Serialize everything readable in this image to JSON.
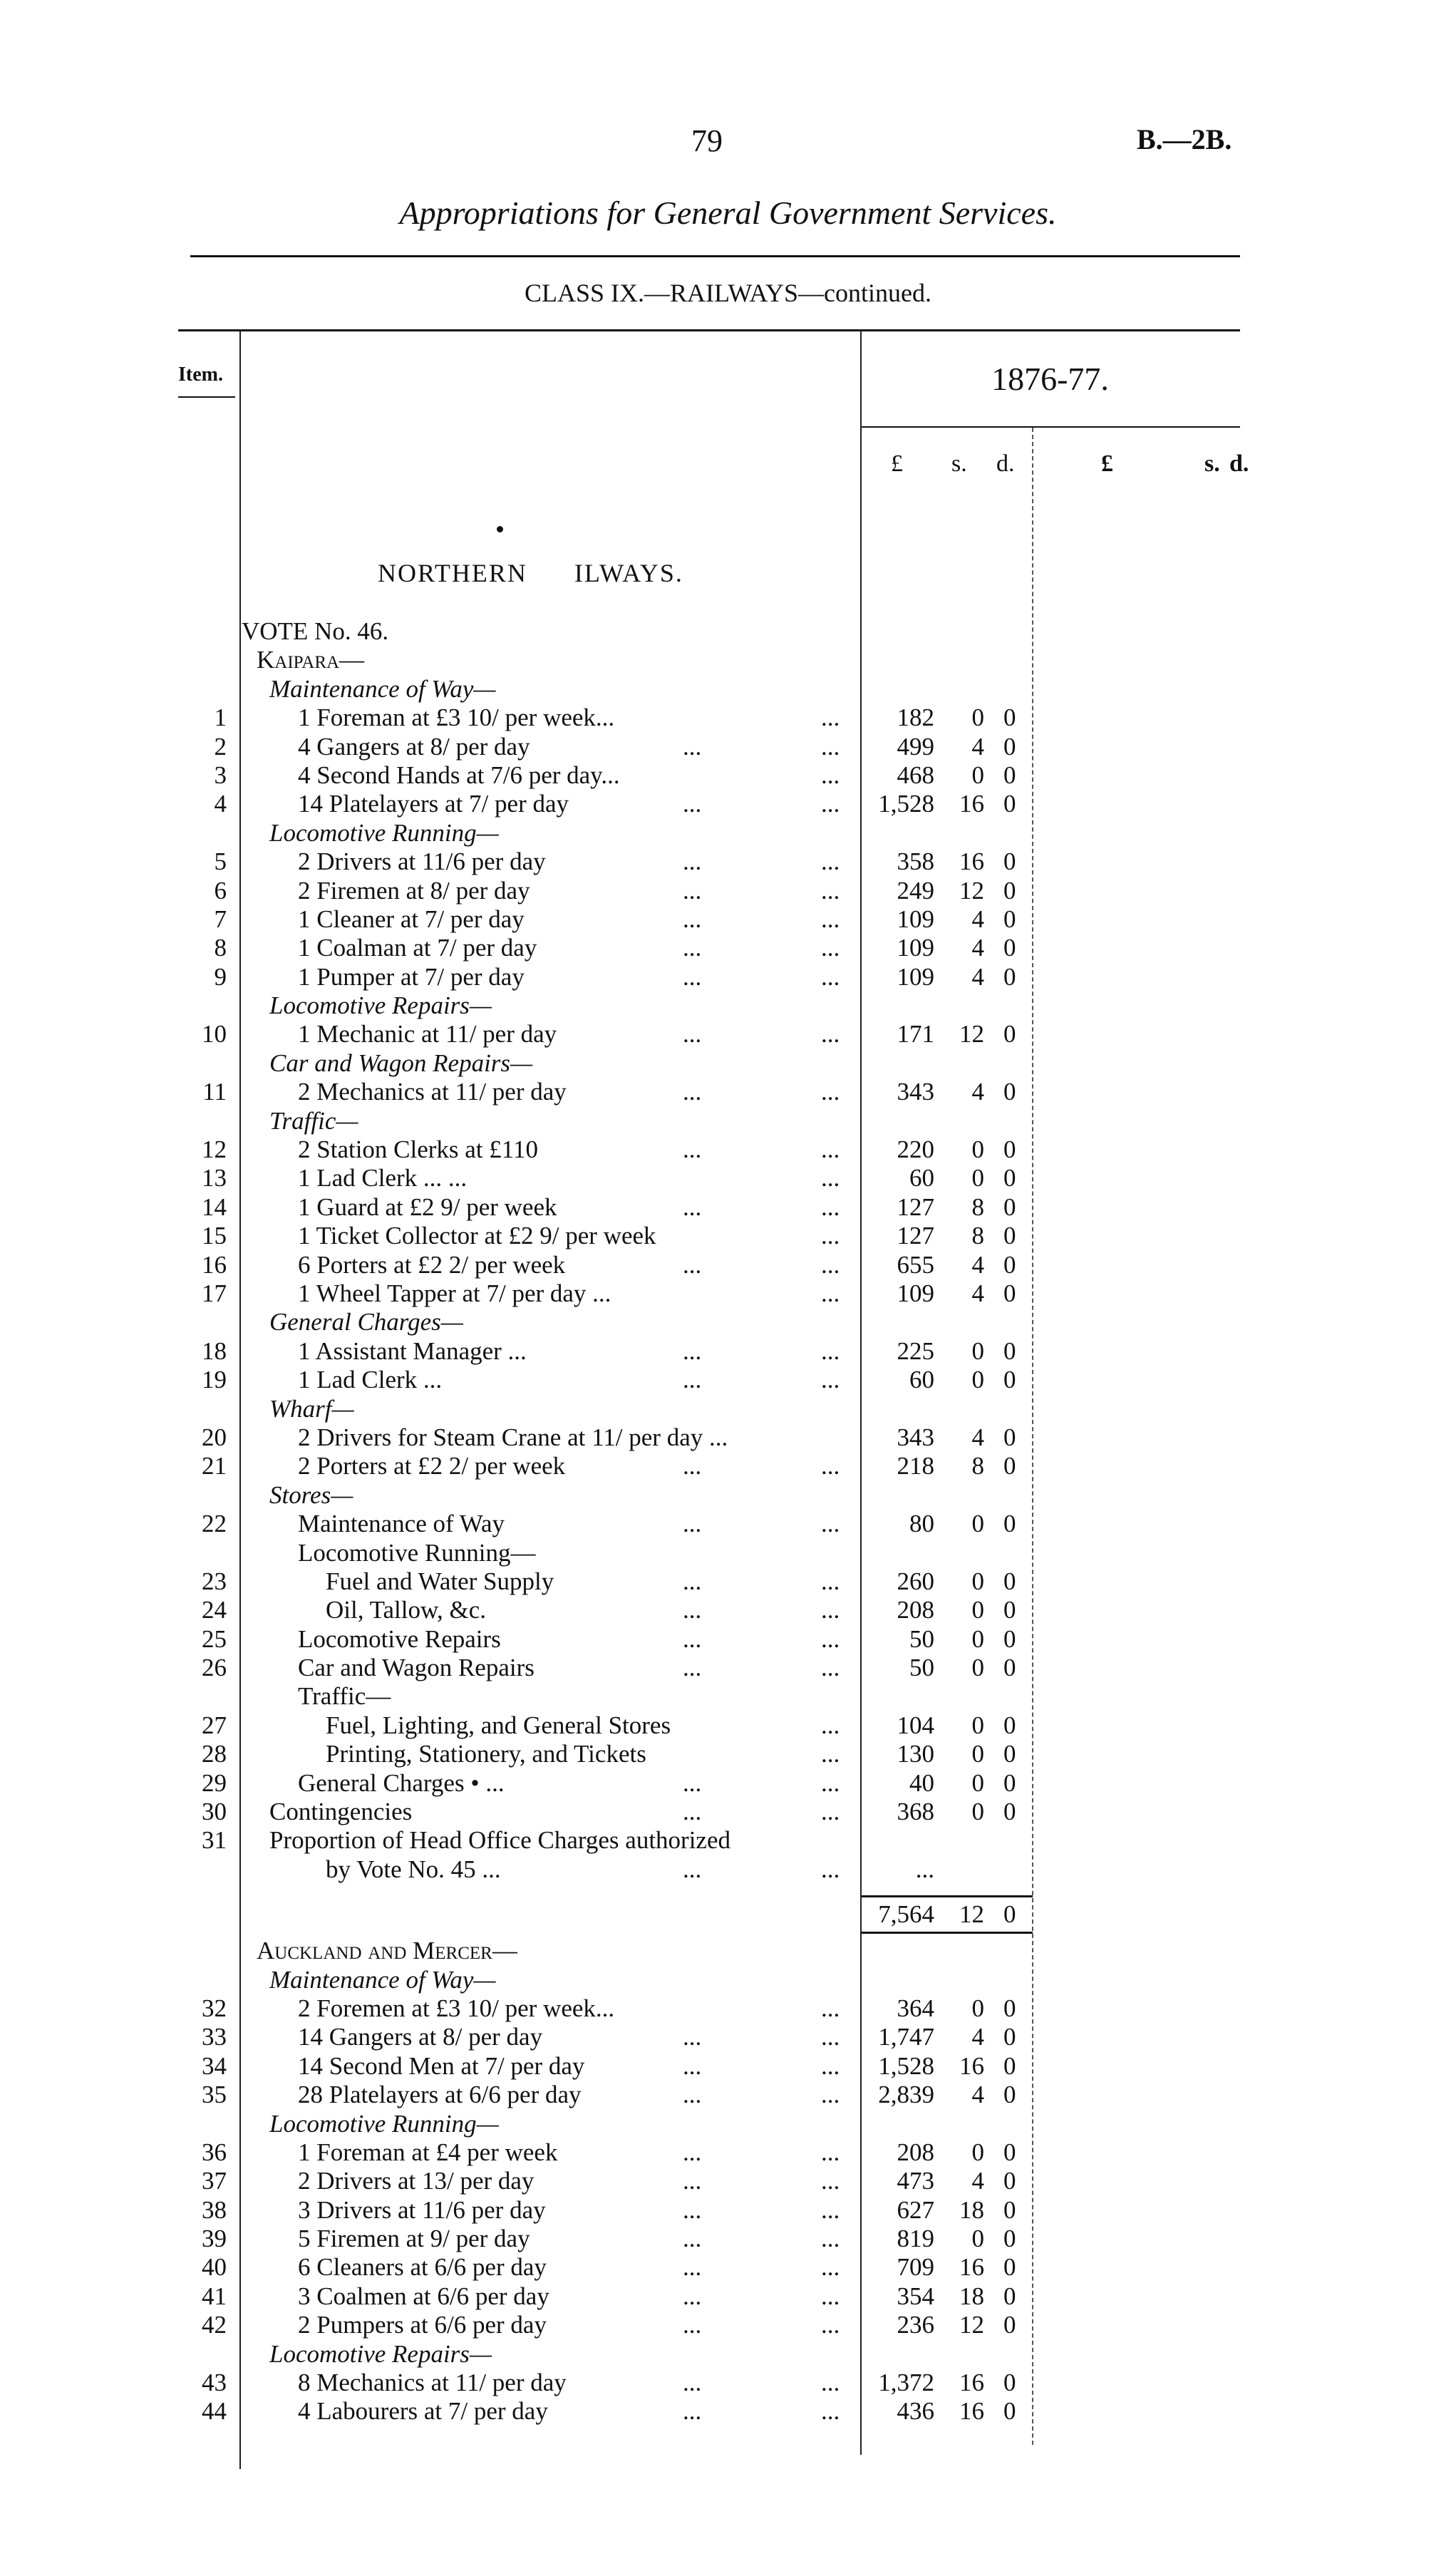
{
  "header": {
    "page_number": "79",
    "reference": "B.—2B.",
    "title": "Appropriations for General Government Services.",
    "class_heading": "CLASS IX.—RAILWAYS—continued."
  },
  "columns": {
    "item": "Item.",
    "year": "1876-77.",
    "pound": "£",
    "shilling": "s.",
    "pence": "d.",
    "pound2": "£",
    "shilling2": "s.",
    "pence2": "d."
  },
  "section_heading": "NORTHERN      ILWAYS.",
  "rows": [
    {
      "text": "VOTE No. 46.",
      "lvl": 0
    },
    {
      "text": "Kaipara—",
      "lvl": 1,
      "style": "sc"
    },
    {
      "text": "Maintenance of Way—",
      "lvl": 2,
      "style": "italic"
    },
    {
      "item": "1",
      "text": "1 Foreman at £3 10/ per week...",
      "lvl": 3,
      "dots": 1,
      "l": "182",
      "s": "0",
      "d": "0"
    },
    {
      "item": "2",
      "text": "4 Gangers at 8/ per day",
      "lvl": 3,
      "dots": 2,
      "l": "499",
      "s": "4",
      "d": "0"
    },
    {
      "item": "3",
      "text": "4 Second Hands at 7/6 per day...",
      "lvl": 3,
      "dots": 1,
      "l": "468",
      "s": "0",
      "d": "0"
    },
    {
      "item": "4",
      "text": "14 Platelayers at 7/ per day",
      "lvl": 3,
      "dots": 2,
      "l": "1,528",
      "s": "16",
      "d": "0"
    },
    {
      "text": "Locomotive Running—",
      "lvl": 2,
      "style": "italic"
    },
    {
      "item": "5",
      "text": "2 Drivers at 11/6 per day",
      "lvl": 3,
      "dots": 2,
      "l": "358",
      "s": "16",
      "d": "0"
    },
    {
      "item": "6",
      "text": "2 Firemen at 8/ per day",
      "lvl": 3,
      "dots": 2,
      "l": "249",
      "s": "12",
      "d": "0"
    },
    {
      "item": "7",
      "text": "1 Cleaner at 7/ per day",
      "lvl": 3,
      "dots": 2,
      "l": "109",
      "s": "4",
      "d": "0"
    },
    {
      "item": "8",
      "text": "1 Coalman at 7/ per day",
      "lvl": 3,
      "dots": 2,
      "l": "109",
      "s": "4",
      "d": "0"
    },
    {
      "item": "9",
      "text": "1 Pumper at 7/ per day",
      "lvl": 3,
      "dots": 2,
      "l": "109",
      "s": "4",
      "d": "0"
    },
    {
      "text": "Locomotive Repairs—",
      "lvl": 2,
      "style": "italic"
    },
    {
      "item": "10",
      "text": "1 Mechanic at 11/ per day",
      "lvl": 3,
      "dots": 2,
      "l": "171",
      "s": "12",
      "d": "0"
    },
    {
      "text": "Car and Wagon Repairs—",
      "lvl": 2,
      "style": "italic"
    },
    {
      "item": "11",
      "text": "2 Mechanics at 11/ per day",
      "lvl": 3,
      "dots": 2,
      "l": "343",
      "s": "4",
      "d": "0"
    },
    {
      "text": "Traffic—",
      "lvl": 2,
      "style": "italic"
    },
    {
      "item": "12",
      "text": "2 Station Clerks at £110",
      "lvl": 3,
      "dots": 2,
      "l": "220",
      "s": "0",
      "d": "0"
    },
    {
      "item": "13",
      "text": "1 Lad Clerk       ...       ...",
      "lvl": 3,
      "dots": 1,
      "l": "60",
      "s": "0",
      "d": "0"
    },
    {
      "item": "14",
      "text": "1 Guard at £2 9/ per week",
      "lvl": 3,
      "dots": 2,
      "l": "127",
      "s": "8",
      "d": "0"
    },
    {
      "item": "15",
      "text": "1 Ticket Collector at £2 9/ per week",
      "lvl": 3,
      "dots": 1,
      "l": "127",
      "s": "8",
      "d": "0"
    },
    {
      "item": "16",
      "text": "6 Porters at £2 2/ per week",
      "lvl": 3,
      "dots": 2,
      "l": "655",
      "s": "4",
      "d": "0"
    },
    {
      "item": "17",
      "text": "1 Wheel Tapper at 7/ per day ...",
      "lvl": 3,
      "dots": 1,
      "l": "109",
      "s": "4",
      "d": "0"
    },
    {
      "text": "General Charges—",
      "lvl": 2,
      "style": "italic"
    },
    {
      "item": "18",
      "text": "1 Assistant Manager ...",
      "lvl": 3,
      "dots": 2,
      "l": "225",
      "s": "0",
      "d": "0"
    },
    {
      "item": "19",
      "text": "1 Lad Clerk       ...",
      "lvl": 3,
      "dots": 2,
      "l": "60",
      "s": "0",
      "d": "0"
    },
    {
      "text": "Wharf—",
      "lvl": 2,
      "style": "italic"
    },
    {
      "item": "20",
      "text": "2 Drivers for Steam Crane at 11/ per day ...",
      "lvl": 3,
      "l": "343",
      "s": "4",
      "d": "0"
    },
    {
      "item": "21",
      "text": "2 Porters at £2 2/ per week",
      "lvl": 3,
      "dots": 2,
      "l": "218",
      "s": "8",
      "d": "0"
    },
    {
      "text": "Stores—",
      "lvl": 2,
      "style": "italic"
    },
    {
      "item": "22",
      "text": "Maintenance of Way",
      "lvl": 3,
      "dots": 2,
      "l": "80",
      "s": "0",
      "d": "0"
    },
    {
      "text": "Locomotive Running—",
      "lvl": 3
    },
    {
      "item": "23",
      "text": "Fuel and Water Supply",
      "lvl": 4,
      "dots": 2,
      "l": "260",
      "s": "0",
      "d": "0"
    },
    {
      "item": "24",
      "text": "Oil, Tallow, &c.",
      "lvl": 4,
      "dots": 2,
      "l": "208",
      "s": "0",
      "d": "0"
    },
    {
      "item": "25",
      "text": "Locomotive Repairs",
      "lvl": 3,
      "dots": 2,
      "l": "50",
      "s": "0",
      "d": "0"
    },
    {
      "item": "26",
      "text": "Car and Wagon Repairs",
      "lvl": 3,
      "dots": 2,
      "l": "50",
      "s": "0",
      "d": "0"
    },
    {
      "text": "Traffic—",
      "lvl": 3
    },
    {
      "item": "27",
      "text": "Fuel, Lighting, and General Stores",
      "lvl": 4,
      "dots": 1,
      "l": "104",
      "s": "0",
      "d": "0"
    },
    {
      "item": "28",
      "text": "Printing, Stationery, and Tickets",
      "lvl": 4,
      "dots": 1,
      "l": "130",
      "s": "0",
      "d": "0"
    },
    {
      "item": "29",
      "text": "General Charges • ...",
      "lvl": 3,
      "dots": 2,
      "l": "40",
      "s": "0",
      "d": "0"
    },
    {
      "item": "30",
      "text": "Contingencies",
      "lvl": 2,
      "dots": 2,
      "l": "368",
      "s": "0",
      "d": "0"
    },
    {
      "item": "31",
      "text": "Proportion of Head Office Charges authorized",
      "lvl": 2
    },
    {
      "text": "by Vote No. 45 ...",
      "lvl": 4,
      "dots": 2,
      "l": "..."
    }
  ],
  "total": {
    "l": "7,564",
    "s": "12",
    "d": "0"
  },
  "rows2": [
    {
      "text": "Auckland and Mercer—",
      "lvl": 1,
      "style": "sc"
    },
    {
      "text": "Maintenance of Way—",
      "lvl": 2,
      "style": "italic"
    },
    {
      "item": "32",
      "text": "2 Foremen at £3 10/ per week...",
      "lvl": 3,
      "dots": 1,
      "l": "364",
      "s": "0",
      "d": "0"
    },
    {
      "item": "33",
      "text": "14 Gangers at 8/ per day",
      "lvl": 3,
      "dots": 2,
      "l": "1,747",
      "s": "4",
      "d": "0"
    },
    {
      "item": "34",
      "text": "14 Second Men at 7/ per day",
      "lvl": 3,
      "dots": 2,
      "l": "1,528",
      "s": "16",
      "d": "0"
    },
    {
      "item": "35",
      "text": "28 Platelayers at 6/6 per day",
      "lvl": 3,
      "dots": 2,
      "l": "2,839",
      "s": "4",
      "d": "0"
    },
    {
      "text": "Locomotive Running—",
      "lvl": 2,
      "style": "italic"
    },
    {
      "item": "36",
      "text": "1 Foreman at £4 per week",
      "lvl": 3,
      "dots": 2,
      "l": "208",
      "s": "0",
      "d": "0"
    },
    {
      "item": "37",
      "text": "2 Drivers at 13/ per day",
      "lvl": 3,
      "dots": 2,
      "l": "473",
      "s": "4",
      "d": "0"
    },
    {
      "item": "38",
      "text": "3 Drivers at 11/6 per day",
      "lvl": 3,
      "dots": 2,
      "l": "627",
      "s": "18",
      "d": "0"
    },
    {
      "item": "39",
      "text": "5 Firemen at 9/ per day",
      "lvl": 3,
      "dots": 2,
      "l": "819",
      "s": "0",
      "d": "0"
    },
    {
      "item": "40",
      "text": "6 Cleaners at 6/6 per day",
      "lvl": 3,
      "dots": 2,
      "l": "709",
      "s": "16",
      "d": "0"
    },
    {
      "item": "41",
      "text": "3 Coalmen at 6/6 per day",
      "lvl": 3,
      "dots": 2,
      "l": "354",
      "s": "18",
      "d": "0"
    },
    {
      "item": "42",
      "text": "2 Pumpers at 6/6 per day",
      "lvl": 3,
      "dots": 2,
      "l": "236",
      "s": "12",
      "d": "0"
    },
    {
      "text": "Locomotive Repairs—",
      "lvl": 2,
      "style": "italic"
    },
    {
      "item": "43",
      "text": "8 Mechanics at 11/ per day",
      "lvl": 3,
      "dots": 2,
      "l": "1,372",
      "s": "16",
      "d": "0"
    },
    {
      "item": "44",
      "text": "4 Labourers at 7/ per day",
      "lvl": 3,
      "dots": 2,
      "l": "436",
      "s": "16",
      "d": "0"
    }
  ],
  "dots_text": "..."
}
